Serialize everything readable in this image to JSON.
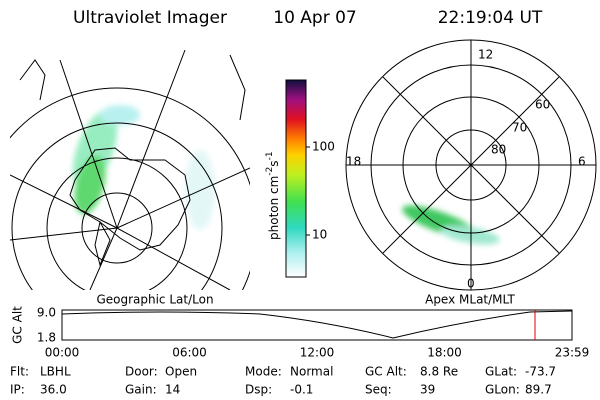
{
  "header": {
    "title": "Ultraviolet Imager",
    "date": "10 Apr 07",
    "time": "22:19:04 UT"
  },
  "colorbar": {
    "label": "photon cm",
    "exp1": "-2",
    "unit2": "s",
    "exp2": "-1",
    "ticks": [
      "100",
      "10"
    ]
  },
  "left_panel": {
    "label": "Geographic Lat/Lon"
  },
  "right_panel": {
    "label": "Apex MLat/MLT",
    "mlt_labels": [
      "12",
      "18",
      "6",
      "0"
    ],
    "lat_labels": [
      "60",
      "70",
      "80"
    ]
  },
  "altitude_plot": {
    "ylabel": "GC Alt",
    "yticks": [
      "9.0",
      "1.8"
    ],
    "xticks": [
      "00:00",
      "06:00",
      "12:00",
      "18:00",
      "23:59"
    ]
  },
  "footer": {
    "rows": [
      [
        {
          "label": "Flt:",
          "value": "LBHL"
        },
        {
          "label": "Door:",
          "value": "Open"
        },
        {
          "label": "Mode:",
          "value": "Normal"
        },
        {
          "label": "GC Alt:",
          "value": "8.8 Re"
        },
        {
          "label": "GLat:",
          "value": "-73.7"
        }
      ],
      [
        {
          "label": "IP:",
          "value": "36.0"
        },
        {
          "label": "Gain:",
          "value": "14"
        },
        {
          "label": "Dsp:",
          "value": "-0.1"
        },
        {
          "label": "Seq:",
          "value": "39"
        },
        {
          "label": "GLon:",
          "value": "89.7"
        }
      ]
    ]
  }
}
